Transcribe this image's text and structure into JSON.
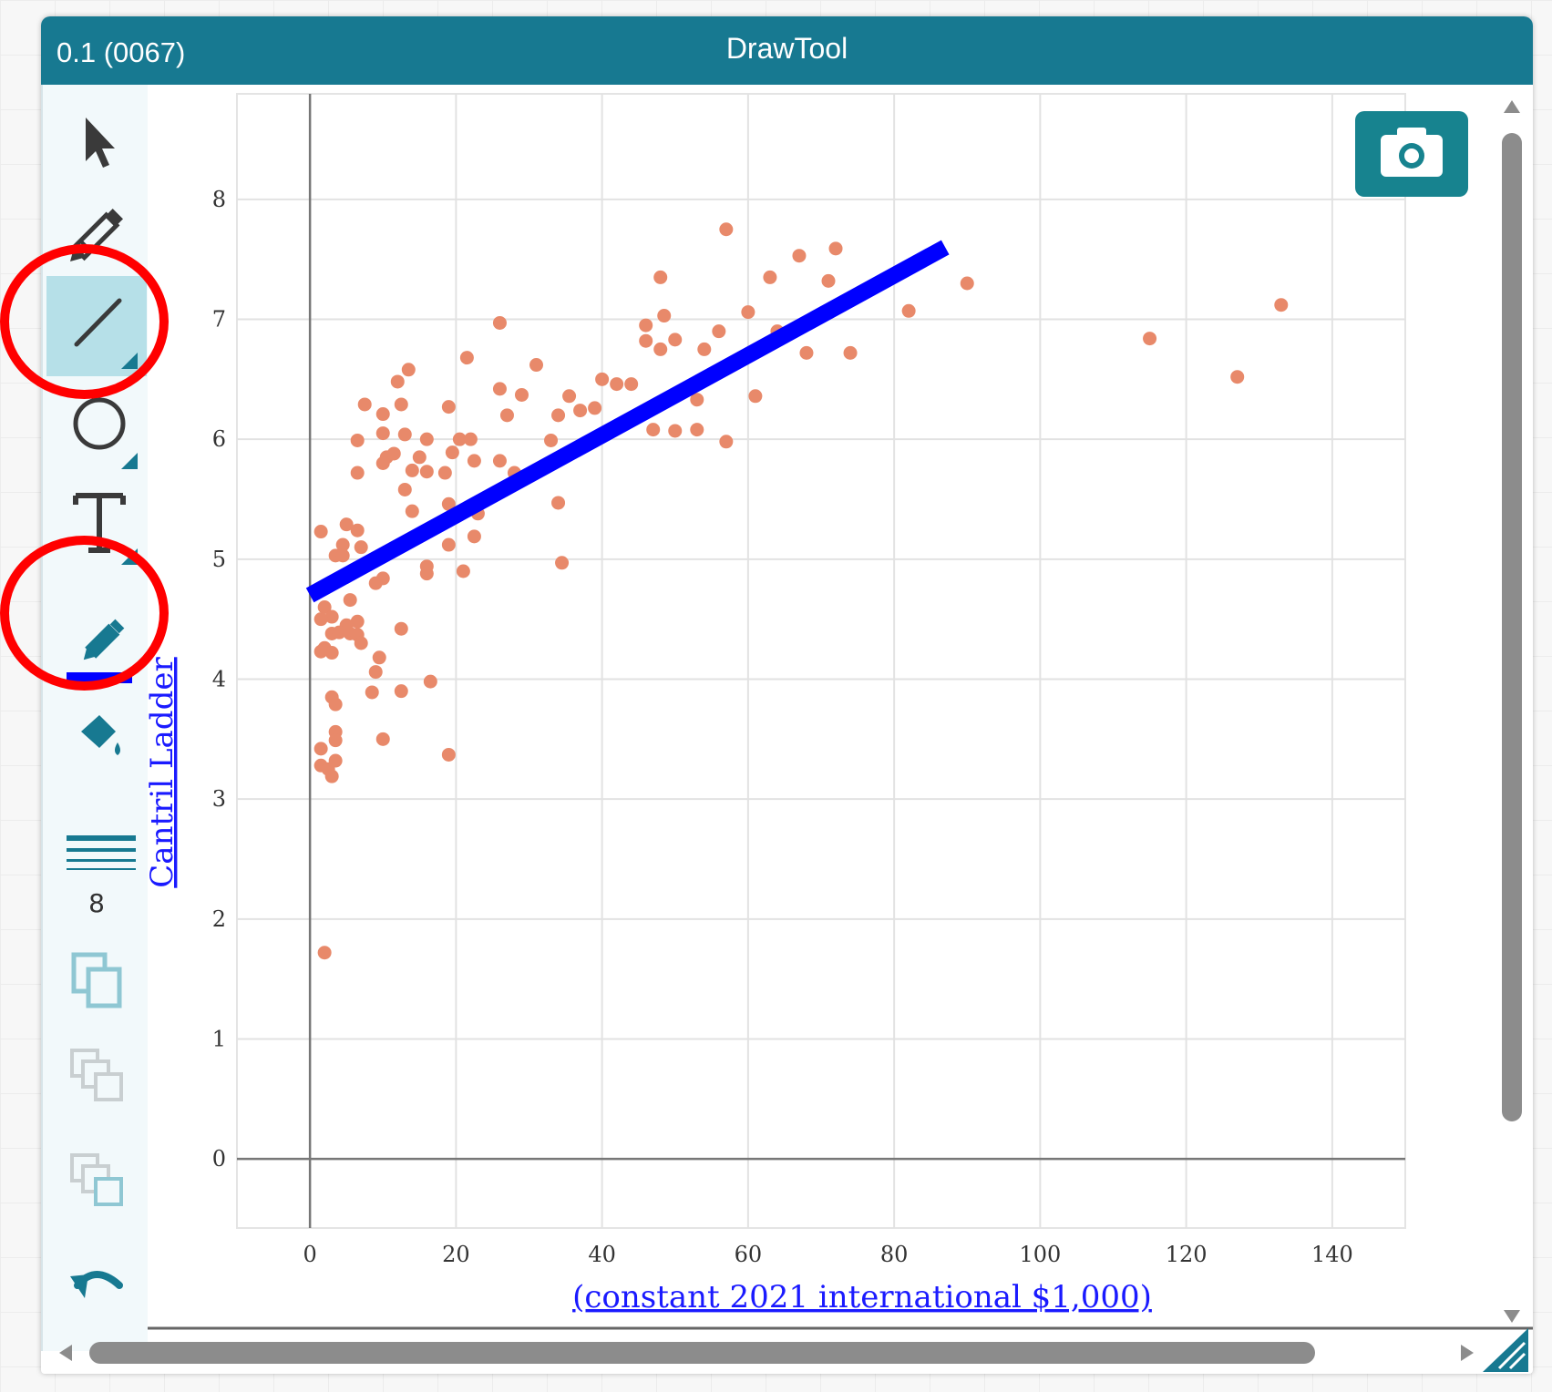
{
  "window": {
    "version": "0.1 (0067)",
    "title": "DrawTool"
  },
  "toolbar": {
    "tools": [
      {
        "name": "select",
        "icon": "arrow-pointer-icon"
      },
      {
        "name": "freehand",
        "icon": "pencil-icon"
      },
      {
        "name": "line",
        "icon": "line-icon",
        "selected": true
      },
      {
        "name": "ellipse",
        "icon": "circle-icon"
      },
      {
        "name": "text",
        "icon": "text-icon"
      },
      {
        "name": "stroke-color",
        "icon": "pencil-color-icon",
        "color": "#0000ff"
      },
      {
        "name": "fill-color",
        "icon": "paint-bucket-icon"
      },
      {
        "name": "stroke-width",
        "icon": "line-width-icon"
      },
      {
        "name": "duplicate",
        "icon": "duplicate-icon"
      },
      {
        "name": "bring-forward",
        "icon": "layer-forward-icon"
      },
      {
        "name": "send-backward",
        "icon": "layer-backward-icon"
      },
      {
        "name": "undo",
        "icon": "undo-icon"
      }
    ],
    "stroke_width": "8",
    "stroke_color": "#0000ff"
  },
  "camera": {
    "icon": "camera-icon"
  },
  "colors": {
    "titlebar": "#177991",
    "points": "#e8896a",
    "trend_line": "#0000ff",
    "annotation": "#ff0000"
  },
  "chart_data": {
    "type": "scatter",
    "xlabel": "(constant 2021 international $1,000)",
    "ylabel": "Cantril Ladder",
    "xlim": [
      -10,
      150
    ],
    "ylim": [
      -0.5,
      8.5
    ],
    "xticks": [
      "0",
      "20",
      "40",
      "60",
      "80",
      "100",
      "120",
      "140"
    ],
    "yticks": [
      "0",
      "1",
      "2",
      "3",
      "4",
      "5",
      "6",
      "7",
      "8"
    ],
    "trend_line": {
      "x": [
        0,
        87
      ],
      "y": [
        4.7,
        7.6
      ],
      "color": "#0000ff"
    },
    "series": [
      {
        "points": [
          [
            57,
            7.75
          ],
          [
            67,
            7.53
          ],
          [
            72,
            7.59
          ],
          [
            48,
            7.35
          ],
          [
            63,
            7.35
          ],
          [
            71,
            7.32
          ],
          [
            90,
            7.3
          ],
          [
            133,
            7.12
          ],
          [
            82,
            7.07
          ],
          [
            60,
            7.06
          ],
          [
            48.5,
            7.03
          ],
          [
            26,
            6.97
          ],
          [
            46,
            6.95
          ],
          [
            56,
            6.9
          ],
          [
            46,
            6.82
          ],
          [
            50,
            6.83
          ],
          [
            115,
            6.84
          ],
          [
            64,
            6.9
          ],
          [
            48,
            6.75
          ],
          [
            54,
            6.75
          ],
          [
            68,
            6.72
          ],
          [
            74,
            6.72
          ],
          [
            21.5,
            6.68
          ],
          [
            31,
            6.62
          ],
          [
            13.5,
            6.58
          ],
          [
            12,
            6.48
          ],
          [
            40,
            6.5
          ],
          [
            42,
            6.46
          ],
          [
            44,
            6.46
          ],
          [
            127,
            6.52
          ],
          [
            26,
            6.42
          ],
          [
            29,
            6.37
          ],
          [
            35.5,
            6.36
          ],
          [
            61,
            6.36
          ],
          [
            7.5,
            6.29
          ],
          [
            12.5,
            6.29
          ],
          [
            19,
            6.27
          ],
          [
            37,
            6.24
          ],
          [
            39,
            6.26
          ],
          [
            53,
            6.33
          ],
          [
            10,
            6.21
          ],
          [
            34,
            6.2
          ],
          [
            27,
            6.2
          ],
          [
            10,
            6.05
          ],
          [
            13,
            6.04
          ],
          [
            6.5,
            5.99
          ],
          [
            20.5,
            6.0
          ],
          [
            22,
            6.0
          ],
          [
            33,
            5.99
          ],
          [
            57,
            5.98
          ],
          [
            16,
            6.0
          ],
          [
            47,
            6.08
          ],
          [
            50,
            6.07
          ],
          [
            53,
            6.08
          ],
          [
            15,
            5.85
          ],
          [
            19.5,
            5.89
          ],
          [
            10.5,
            5.85
          ],
          [
            10,
            5.8
          ],
          [
            14,
            5.74
          ],
          [
            11.5,
            5.88
          ],
          [
            26,
            5.82
          ],
          [
            22.5,
            5.82
          ],
          [
            16,
            5.73
          ],
          [
            18.5,
            5.72
          ],
          [
            6.5,
            5.72
          ],
          [
            28,
            5.72
          ],
          [
            13,
            5.58
          ],
          [
            34,
            5.47
          ],
          [
            19,
            5.46
          ],
          [
            14,
            5.4
          ],
          [
            23,
            5.38
          ],
          [
            1.5,
            5.23
          ],
          [
            5,
            5.29
          ],
          [
            6.5,
            5.24
          ],
          [
            4.5,
            5.12
          ],
          [
            7,
            5.1
          ],
          [
            19,
            5.12
          ],
          [
            22.5,
            5.19
          ],
          [
            3.5,
            5.03
          ],
          [
            4.5,
            5.03
          ],
          [
            16,
            4.94
          ],
          [
            16,
            4.88
          ],
          [
            21,
            4.9
          ],
          [
            10,
            4.84
          ],
          [
            9,
            4.8
          ],
          [
            34.5,
            4.97
          ],
          [
            5.5,
            4.66
          ],
          [
            2,
            4.6
          ],
          [
            3,
            4.52
          ],
          [
            6.5,
            4.48
          ],
          [
            1.5,
            4.5
          ],
          [
            5,
            4.45
          ],
          [
            12.5,
            4.42
          ],
          [
            3,
            4.38
          ],
          [
            4,
            4.39
          ],
          [
            5.5,
            4.38
          ],
          [
            6.5,
            4.37
          ],
          [
            7,
            4.3
          ],
          [
            2,
            4.26
          ],
          [
            3,
            4.22
          ],
          [
            1.5,
            4.23
          ],
          [
            9.5,
            4.18
          ],
          [
            9,
            4.06
          ],
          [
            16.5,
            3.98
          ],
          [
            8.5,
            3.89
          ],
          [
            12.5,
            3.9
          ],
          [
            3,
            3.85
          ],
          [
            3.5,
            3.79
          ],
          [
            3.5,
            3.56
          ],
          [
            3.5,
            3.49
          ],
          [
            10,
            3.5
          ],
          [
            19,
            3.37
          ],
          [
            1.5,
            3.42
          ],
          [
            3.5,
            3.32
          ],
          [
            1.5,
            3.28
          ],
          [
            2.5,
            3.25
          ],
          [
            3,
            3.19
          ],
          [
            2,
            1.72
          ]
        ]
      }
    ]
  }
}
